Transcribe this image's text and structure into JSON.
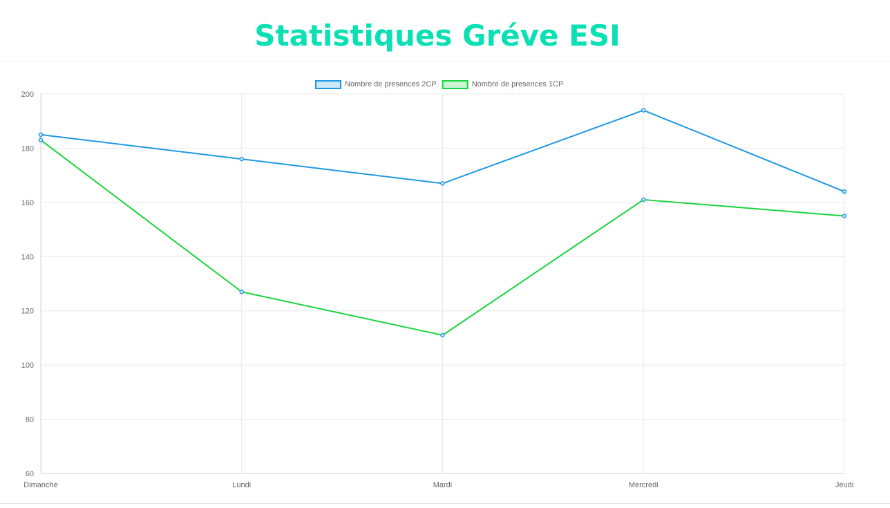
{
  "header": {
    "title": "Statistiques Gréve ESI"
  },
  "colors": {
    "title": "#0be0b5",
    "series_2cp": "#1e98e3",
    "series_1cp": "#19d43c",
    "grid": "#e8e8e8",
    "tick_text": "#666666"
  },
  "chart_data": {
    "type": "line",
    "categories": [
      "Dimanche",
      "Lundi",
      "Mardi",
      "Mercredi",
      "Jeudi"
    ],
    "series": [
      {
        "name": "Nombre de presences 2CP",
        "values": [
          185,
          176,
          167,
          194,
          164
        ],
        "color": "#1e98e3",
        "fill": "#cce8f8"
      },
      {
        "name": "Nombre de presences 1CP",
        "values": [
          183,
          127,
          111,
          161,
          155
        ],
        "color": "#19d43c",
        "fill": "#ccf5d4"
      }
    ],
    "ylim": [
      60,
      200
    ],
    "yticks": [
      60,
      80,
      100,
      120,
      140,
      160,
      180,
      200
    ],
    "grid": true,
    "legend": "top-center",
    "title": "",
    "xlabel": "",
    "ylabel": ""
  }
}
